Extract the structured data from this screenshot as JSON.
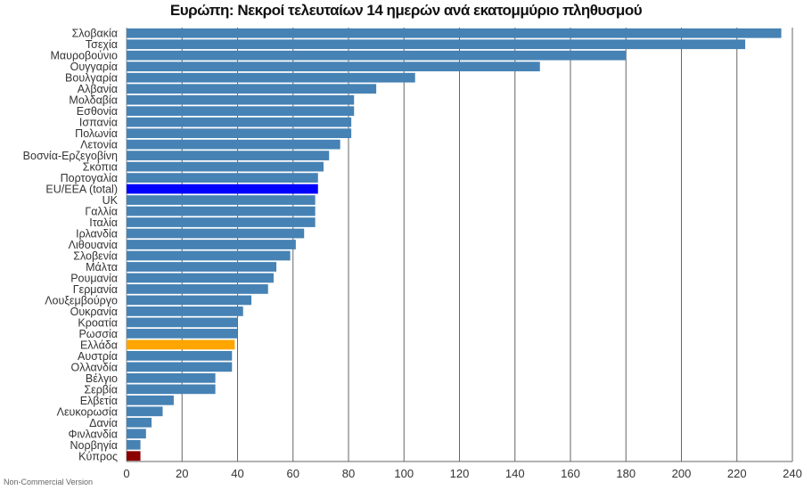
{
  "page": {
    "footer_note": "Non-Commercial Version"
  },
  "chart_data": {
    "type": "bar",
    "orientation": "horizontal",
    "title": "Ευρώπη: Νεκροί τελευταίων 14 ημερών ανά εκατομμύριο πληθυσμού",
    "xlabel": "",
    "ylabel": "",
    "xlim": [
      0,
      240
    ],
    "xticks": [
      0,
      20,
      40,
      60,
      80,
      100,
      120,
      140,
      160,
      180,
      200,
      220,
      240
    ],
    "grid": true,
    "categories": [
      "Σλοβακία",
      "Τσεχία",
      "Μαυροβούνιο",
      "Ουγγαρία",
      "Βουλγαρία",
      "Αλβανία",
      "Μολδαβία",
      "Εσθονία",
      "Ισπανία",
      "Πολωνία",
      "Λετονία",
      "Βοσνία-Ερζεγοβίνη",
      "Σκόπια",
      "Πορτογαλία",
      "EU/EEA (total)",
      "UK",
      "Γαλλία",
      "Ιταλία",
      "Ιρλανδία",
      "Λιθουανία",
      "Σλοβενία",
      "Μάλτα",
      "Ρουμανία",
      "Γερμανία",
      "Λουξεμβούργο",
      "Ουκρανία",
      "Κροατία",
      "Ρωσσία",
      "Ελλάδα",
      "Αυστρία",
      "Ολλανδία",
      "Βέλγιο",
      "Σερβία",
      "Ελβετία",
      "Λευκορωσία",
      "Δανία",
      "Φινλανδία",
      "Νορβηγία",
      "Κύπρος"
    ],
    "values": [
      236,
      223,
      180,
      149,
      104,
      90,
      82,
      82,
      81,
      81,
      77,
      73,
      71,
      69,
      69,
      68,
      68,
      68,
      64,
      61,
      59,
      54,
      53,
      51,
      45,
      42,
      40,
      40,
      39,
      38,
      38,
      32,
      32,
      17,
      13,
      9,
      7,
      5,
      5
    ],
    "colors": {
      "default": "#4682b4",
      "EU/EEA (total)": "#0000ff",
      "Ελλάδα": "#ffa500",
      "Κύπρος": "#8b0000"
    }
  }
}
